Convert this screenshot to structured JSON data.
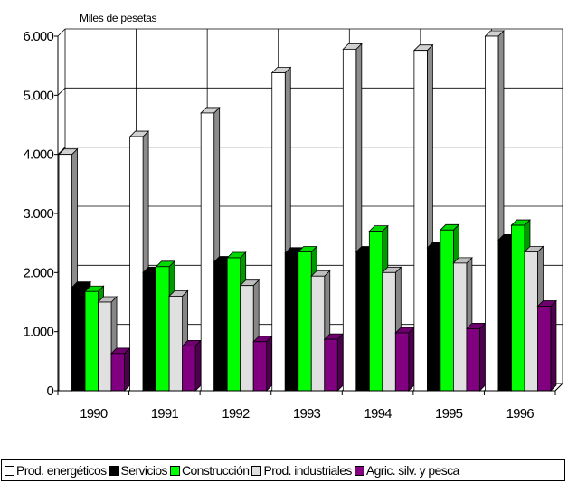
{
  "chart_data": {
    "type": "bar",
    "unit_label": "Miles de pesetas",
    "categories": [
      "1990",
      "1991",
      "1992",
      "1993",
      "1994",
      "1995",
      "1996"
    ],
    "ylim": [
      0,
      6000
    ],
    "yticks": [
      0,
      1000,
      2000,
      3000,
      4000,
      5000,
      6000
    ],
    "ytick_labels": [
      "0",
      "1.000",
      "2.000",
      "3.000",
      "4.000",
      "5.000",
      "6.000"
    ],
    "grid": true,
    "legend_position": "bottom",
    "series": [
      {
        "name": "Prod. energéticos",
        "color": "#ffffff",
        "values": [
          4000,
          4300,
          4700,
          5380,
          5780,
          5760,
          6000
        ]
      },
      {
        "name": "Servicios",
        "color": "#000000",
        "values": [
          1750,
          2000,
          2180,
          2330,
          2350,
          2420,
          2550
        ]
      },
      {
        "name": "Construcción",
        "color": "#00ff00",
        "values": [
          1680,
          2100,
          2250,
          2350,
          2700,
          2720,
          2800
        ]
      },
      {
        "name": "Prod. industriales",
        "color": "#e0e0e0",
        "values": [
          1500,
          1600,
          1780,
          1940,
          2000,
          2160,
          2350
        ]
      },
      {
        "name": "Agric. silv. y pesca",
        "color": "#800080",
        "values": [
          630,
          760,
          830,
          870,
          980,
          1050,
          1430
        ]
      }
    ]
  }
}
